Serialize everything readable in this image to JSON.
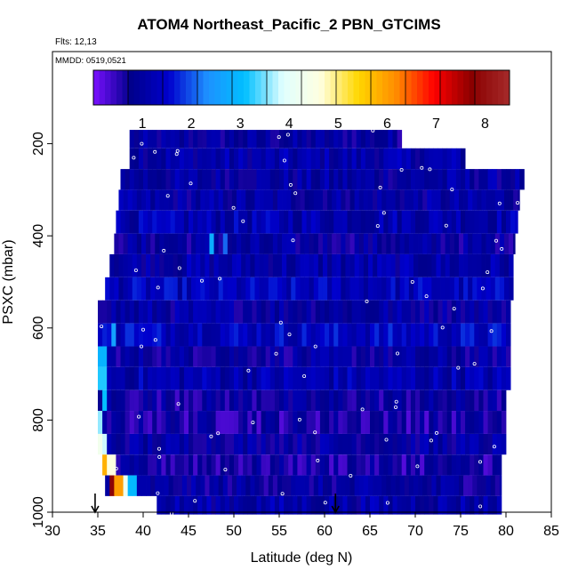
{
  "chart_data": {
    "type": "heatmap",
    "title": "ATOM4 Northeast_Pacific_2 PBN_GTCIMS",
    "flights_label": "Flts: 12,13",
    "dates_label": "MMDD: 0519,0521",
    "xlabel": "Latitude (deg N)",
    "ylabel": "PSXC (mbar)",
    "xlim": [
      30,
      85
    ],
    "ylim": [
      1000,
      0
    ],
    "x_ticks": [
      30,
      35,
      40,
      45,
      50,
      55,
      60,
      65,
      70,
      75,
      80,
      85
    ],
    "y_ticks": [
      200,
      400,
      600,
      800,
      1000
    ],
    "colorbar": {
      "min": 0,
      "max": 8.5,
      "ticks": [
        1,
        2,
        3,
        4,
        5,
        6,
        7,
        8
      ],
      "colors": [
        "#7a10ff",
        "#00008b",
        "#0000cd",
        "#1e90ff",
        "#00bfff",
        "#e0ffff",
        "#ffffe0",
        "#ffd700",
        "#ff8c00",
        "#ff0000",
        "#8b0000",
        "#a52a2a"
      ]
    },
    "data_range_arrows_lat": [
      34.7,
      61.2
    ],
    "bands": [
      {
        "p_top": 170,
        "p_bot": 210,
        "lat_start": 38.5,
        "lat_end": 68.5,
        "base": 0.9
      },
      {
        "p_top": 210,
        "p_bot": 255,
        "lat_start": 38.5,
        "lat_end": 75.5,
        "base": 1.1
      },
      {
        "p_top": 255,
        "p_bot": 300,
        "lat_start": 37.5,
        "lat_end": 82.0,
        "base": 1.0
      },
      {
        "p_top": 300,
        "p_bot": 345,
        "lat_start": 37.3,
        "lat_end": 81.5,
        "base": 1.0
      },
      {
        "p_top": 345,
        "p_bot": 395,
        "lat_start": 37.0,
        "lat_end": 81.3,
        "base": 1.2
      },
      {
        "p_top": 395,
        "p_bot": 440,
        "lat_start": 36.8,
        "lat_end": 81.0,
        "base": 0.9
      },
      {
        "p_top": 440,
        "p_bot": 490,
        "lat_start": 36.3,
        "lat_end": 80.8,
        "base": 1.1
      },
      {
        "p_top": 490,
        "p_bot": 540,
        "lat_start": 35.8,
        "lat_end": 80.8,
        "base": 1.3
      },
      {
        "p_top": 540,
        "p_bot": 590,
        "lat_start": 35.0,
        "lat_end": 80.5,
        "base": 1.0
      },
      {
        "p_top": 590,
        "p_bot": 640,
        "lat_start": 35.0,
        "lat_end": 80.5,
        "base": 1.4
      },
      {
        "p_top": 640,
        "p_bot": 685,
        "lat_start": 35.0,
        "lat_end": 80.5,
        "base": 0.9
      },
      {
        "p_top": 685,
        "p_bot": 735,
        "lat_start": 35.0,
        "lat_end": 80.5,
        "base": 1.2
      },
      {
        "p_top": 735,
        "p_bot": 780,
        "lat_start": 35.0,
        "lat_end": 80.0,
        "base": 0.8
      },
      {
        "p_top": 780,
        "p_bot": 830,
        "lat_start": 35.0,
        "lat_end": 80.0,
        "base": 0.7
      },
      {
        "p_top": 830,
        "p_bot": 875,
        "lat_start": 35.0,
        "lat_end": 80.0,
        "base": 1.0
      },
      {
        "p_top": 875,
        "p_bot": 920,
        "lat_start": 35.5,
        "lat_end": 79.5,
        "base": 0.7
      },
      {
        "p_top": 920,
        "p_bot": 965,
        "lat_start": 35.8,
        "lat_end": 79.5,
        "base": 0.9
      },
      {
        "p_top": 965,
        "p_bot": 1005,
        "lat_start": 41.5,
        "lat_end": 79.5,
        "base": 1.1
      }
    ],
    "hotspots": [
      {
        "lat": 36.5,
        "p": 942,
        "value": 7.8
      },
      {
        "lat": 37.3,
        "p": 942,
        "value": 6.0
      },
      {
        "lat": 38.0,
        "p": 942,
        "value": 4.2
      },
      {
        "lat": 38.8,
        "p": 942,
        "value": 3.0
      },
      {
        "lat": 36.0,
        "p": 898,
        "value": 5.8
      },
      {
        "lat": 36.6,
        "p": 898,
        "value": 4.6
      },
      {
        "lat": 35.2,
        "p": 852,
        "value": 4.3
      },
      {
        "lat": 35.8,
        "p": 852,
        "value": 3.8
      },
      {
        "lat": 35.2,
        "p": 805,
        "value": 3.6
      },
      {
        "lat": 35.8,
        "p": 757,
        "value": 3.1
      },
      {
        "lat": 35.4,
        "p": 710,
        "value": 3.2
      },
      {
        "lat": 35.6,
        "p": 662,
        "value": 2.9
      },
      {
        "lat": 36.8,
        "p": 615,
        "value": 2.6
      },
      {
        "lat": 38.5,
        "p": 615,
        "value": 1.8
      },
      {
        "lat": 47.5,
        "p": 418,
        "value": 2.8
      },
      {
        "lat": 49.0,
        "p": 418,
        "value": 2.1
      }
    ]
  }
}
